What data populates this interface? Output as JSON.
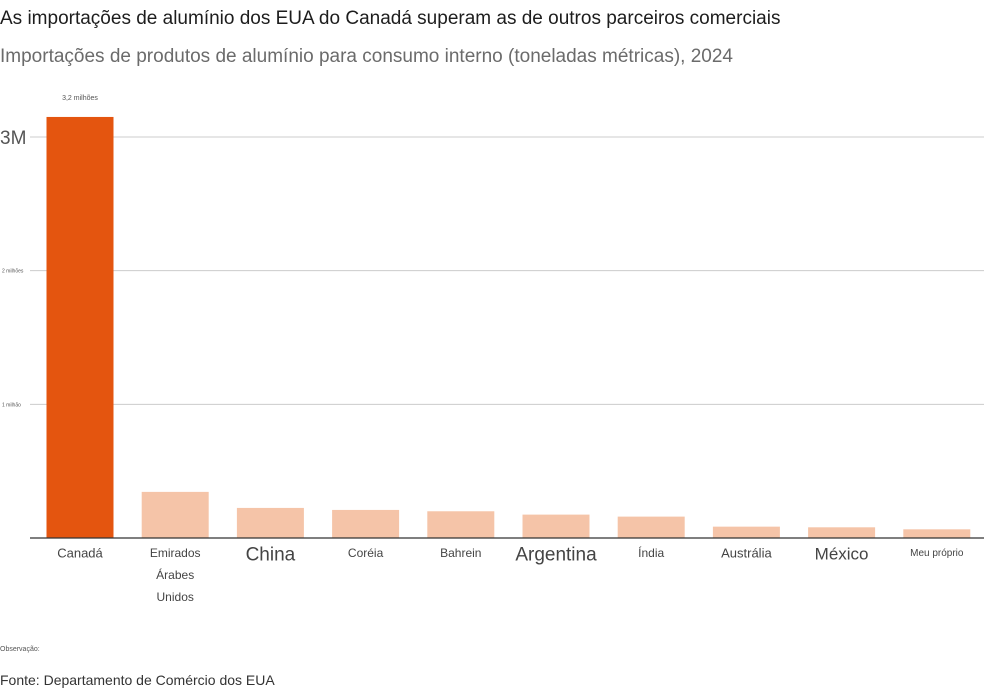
{
  "chart_data": {
    "type": "bar",
    "title": "As importações de alumínio dos EUA do Canadá superam as de outros parceiros comerciais",
    "subtitle": "Importações de produtos de alumínio para consumo interno (toneladas métricas), 2024",
    "categories": [
      "Canadá",
      "Emirados Árabes Unidos",
      "China",
      "Coréia",
      "Bahrein",
      "Argentina",
      "Índia",
      "Austrália",
      "México",
      "Meu próprio"
    ],
    "category_lines": [
      [
        "Canadá"
      ],
      [
        "Emirados",
        "Árabes",
        "Unidos"
      ],
      [
        "China"
      ],
      [
        "Coréia"
      ],
      [
        "Bahrein"
      ],
      [
        "Argentina"
      ],
      [
        "Índia"
      ],
      [
        "Austrália"
      ],
      [
        "México"
      ],
      [
        "Meu próprio"
      ]
    ],
    "values": [
      3150000,
      345000,
      225000,
      210000,
      200000,
      175000,
      160000,
      85000,
      80000,
      65000
    ],
    "ylim": [
      0,
      3000000
    ],
    "yticks": [
      {
        "value": 1000000,
        "label": "1 milhão"
      },
      {
        "value": 2000000,
        "label": "2 milhões"
      },
      {
        "value": 3000000,
        "label": "3M"
      }
    ],
    "data_labels": [
      {
        "index": 0,
        "text": "3,2 milhões"
      }
    ],
    "highlight_index": 0,
    "colors": {
      "highlight": "#e4550f",
      "other": "#f5c4a8"
    },
    "grid": true,
    "xlabel": "",
    "ylabel": ""
  },
  "footer": {
    "note": "Observação:",
    "source": "Fonte: Departamento de Comércio dos EUA"
  }
}
